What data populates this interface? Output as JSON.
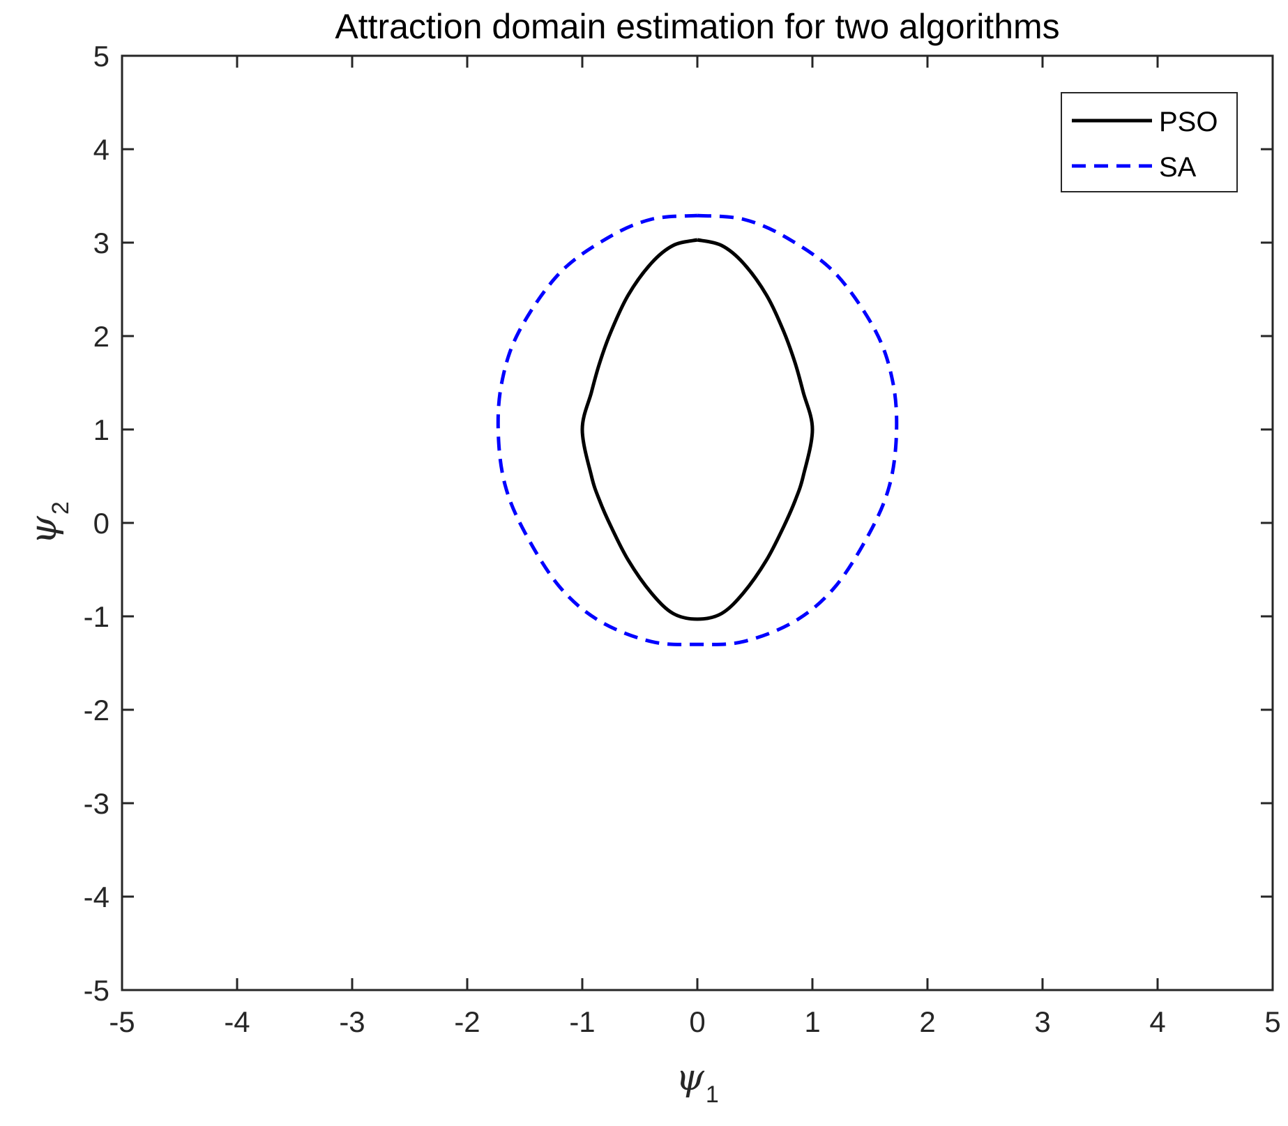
{
  "chart_data": {
    "type": "line",
    "title": "Attraction domain estimation for two algorithms",
    "xlabel": {
      "symbol": "ψ",
      "subscript": "1"
    },
    "ylabel": {
      "symbol": "ψ",
      "subscript": "2"
    },
    "xlim": [
      -5,
      5
    ],
    "ylim": [
      -5,
      5
    ],
    "xticks": [
      -5,
      -4,
      -3,
      -2,
      -1,
      0,
      1,
      2,
      3,
      4,
      5
    ],
    "yticks": [
      -5,
      -4,
      -3,
      -2,
      -1,
      0,
      1,
      2,
      3,
      4,
      5
    ],
    "xtick_labels": [
      "-5",
      "-4",
      "-3",
      "-2",
      "-1",
      "0",
      "1",
      "2",
      "3",
      "4",
      "5"
    ],
    "ytick_labels": [
      "-5",
      "-4",
      "-3",
      "-2",
      "-1",
      "0",
      "1",
      "2",
      "3",
      "4",
      "5"
    ],
    "grid": false,
    "legend_position": "top-right",
    "series": [
      {
        "name": "PSO",
        "color": "#000000",
        "style": "solid",
        "points": [
          [
            0.0,
            3.03
          ],
          [
            0.21,
            2.97
          ],
          [
            0.4,
            2.78
          ],
          [
            0.6,
            2.44
          ],
          [
            0.75,
            2.05
          ],
          [
            0.85,
            1.71
          ],
          [
            0.92,
            1.4
          ],
          [
            1.0,
            1.0
          ],
          [
            0.92,
            0.5
          ],
          [
            0.85,
            0.24
          ],
          [
            0.75,
            -0.04
          ],
          [
            0.6,
            -0.4
          ],
          [
            0.4,
            -0.75
          ],
          [
            0.21,
            -0.97
          ],
          [
            0.0,
            -1.03
          ],
          [
            -0.21,
            -0.97
          ],
          [
            -0.4,
            -0.75
          ],
          [
            -0.6,
            -0.4
          ],
          [
            -0.75,
            -0.04
          ],
          [
            -0.85,
            0.24
          ],
          [
            -0.92,
            0.5
          ],
          [
            -1.0,
            1.0
          ],
          [
            -0.92,
            1.4
          ],
          [
            -0.85,
            1.71
          ],
          [
            -0.75,
            2.05
          ],
          [
            -0.6,
            2.44
          ],
          [
            -0.4,
            2.78
          ],
          [
            -0.21,
            2.97
          ],
          [
            0.0,
            3.03
          ]
        ]
      },
      {
        "name": "SA",
        "color": "#0000ff",
        "style": "dashed",
        "points": [
          [
            0.0,
            3.29
          ],
          [
            0.4,
            3.25
          ],
          [
            0.78,
            3.05
          ],
          [
            1.2,
            2.67
          ],
          [
            1.55,
            2.05
          ],
          [
            1.7,
            1.5
          ],
          [
            1.73,
            0.95
          ],
          [
            1.67,
            0.4
          ],
          [
            1.5,
            -0.1
          ],
          [
            1.2,
            -0.68
          ],
          [
            0.85,
            -1.05
          ],
          [
            0.4,
            -1.27
          ],
          [
            0.0,
            -1.3
          ],
          [
            -0.4,
            -1.27
          ],
          [
            -0.85,
            -1.05
          ],
          [
            -1.2,
            -0.68
          ],
          [
            -1.5,
            -0.1
          ],
          [
            -1.67,
            0.4
          ],
          [
            -1.73,
            0.95
          ],
          [
            -1.7,
            1.5
          ],
          [
            -1.55,
            2.05
          ],
          [
            -1.2,
            2.67
          ],
          [
            -0.78,
            3.05
          ],
          [
            -0.4,
            3.25
          ],
          [
            0.0,
            3.29
          ]
        ]
      }
    ]
  }
}
